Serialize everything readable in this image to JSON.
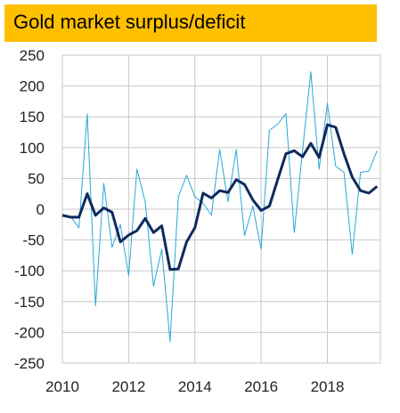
{
  "title": "Gold market surplus/deficit",
  "chart_data": {
    "type": "line",
    "title": "Gold market surplus/deficit",
    "xlabel": "",
    "ylabel": "",
    "xlim": [
      2010,
      2019.6
    ],
    "ylim": [
      -250,
      250
    ],
    "yticks": [
      250,
      200,
      150,
      100,
      50,
      0,
      -50,
      -100,
      -150,
      -200,
      -250
    ],
    "xticks": [
      2010,
      2012,
      2014,
      2016,
      2018
    ],
    "grid": true,
    "legend": "none",
    "series": [
      {
        "style": "thin",
        "color": "#29a8d6",
        "x": [
          2010.0,
          2010.25,
          2010.5,
          2010.75,
          2011.0,
          2011.25,
          2011.5,
          2011.75,
          2012.0,
          2012.25,
          2012.5,
          2012.75,
          2013.0,
          2013.25,
          2013.5,
          2013.75,
          2014.0,
          2014.25,
          2014.5,
          2014.75,
          2015.0,
          2015.25,
          2015.5,
          2015.75,
          2016.0,
          2016.25,
          2016.5,
          2016.75,
          2017.0,
          2017.25,
          2017.5,
          2017.75,
          2018.0,
          2018.25,
          2018.5,
          2018.75,
          2019.0,
          2019.25,
          2019.5
        ],
        "values": [
          -10,
          -12,
          -30,
          155,
          -157,
          42,
          -62,
          -25,
          -108,
          65,
          12,
          -125,
          -65,
          -215,
          20,
          55,
          20,
          10,
          -10,
          97,
          12,
          97,
          -43,
          5,
          -65,
          128,
          138,
          155,
          -38,
          95,
          223,
          65,
          172,
          70,
          60,
          -73,
          60,
          62,
          95
        ]
      },
      {
        "style": "thick",
        "color": "#0e2a5e",
        "x": [
          2010.0,
          2010.25,
          2010.5,
          2010.75,
          2011.0,
          2011.25,
          2011.5,
          2011.75,
          2012.0,
          2012.25,
          2012.5,
          2012.75,
          2013.0,
          2013.25,
          2013.5,
          2013.75,
          2014.0,
          2014.25,
          2014.5,
          2014.75,
          2015.0,
          2015.25,
          2015.5,
          2015.75,
          2016.0,
          2016.25,
          2016.5,
          2016.75,
          2017.0,
          2017.25,
          2017.5,
          2017.75,
          2018.0,
          2018.25,
          2018.5,
          2018.75,
          2019.0,
          2019.25,
          2019.5
        ],
        "values": [
          -10,
          -13,
          -13,
          25,
          -10,
          2,
          -5,
          -53,
          -42,
          -35,
          -15,
          -38,
          -27,
          -98,
          -97,
          -53,
          -30,
          26,
          18,
          30,
          27,
          48,
          40,
          15,
          -2,
          5,
          48,
          90,
          95,
          85,
          107,
          84,
          137,
          133,
          90,
          52,
          30,
          26,
          37
        ]
      }
    ]
  }
}
